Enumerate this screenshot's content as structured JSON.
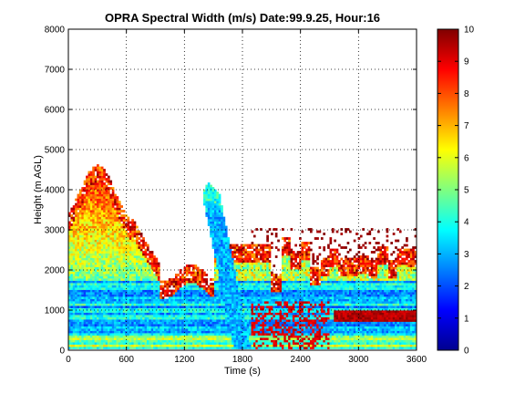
{
  "chart_data": {
    "type": "heatmap",
    "title": "OPRA Spectral Width (m/s)  Date:99.9.25, Hour:16",
    "xlabel": "Time (s)",
    "ylabel": "Height (m AGL)",
    "xlim": [
      0,
      3600
    ],
    "ylim": [
      0,
      8000
    ],
    "xticks": [
      0,
      600,
      1200,
      1800,
      2400,
      3000,
      3600
    ],
    "yticks": [
      0,
      1000,
      2000,
      3000,
      4000,
      5000,
      6000,
      7000,
      8000
    ],
    "grid": true,
    "colorbar": {
      "min": 0,
      "max": 10,
      "ticks": [
        0,
        1,
        2,
        3,
        4,
        5,
        6,
        7,
        8,
        9,
        10
      ],
      "colormap": "jet",
      "position": "right"
    },
    "regions": [
      {
        "name": "dense layer",
        "x": [
          0,
          3600
        ],
        "y": [
          0,
          1700
        ],
        "typical_value": 3.5
      },
      {
        "name": "high-width band",
        "x": [
          2750,
          3600
        ],
        "y": [
          700,
          950
        ],
        "typical_value": 9.5
      },
      {
        "name": "mixed layer plume",
        "x": [
          0,
          950
        ],
        "y": [
          1700,
          5100
        ],
        "typical_value": 6
      },
      {
        "name": "slanted feature",
        "x": [
          1580,
          2050
        ],
        "y": [
          0,
          4200
        ],
        "typical_value": 3
      },
      {
        "name": "upper fringe",
        "x": [
          1900,
          3600
        ],
        "y": [
          1700,
          3000
        ],
        "typical_value": 8
      }
    ]
  }
}
